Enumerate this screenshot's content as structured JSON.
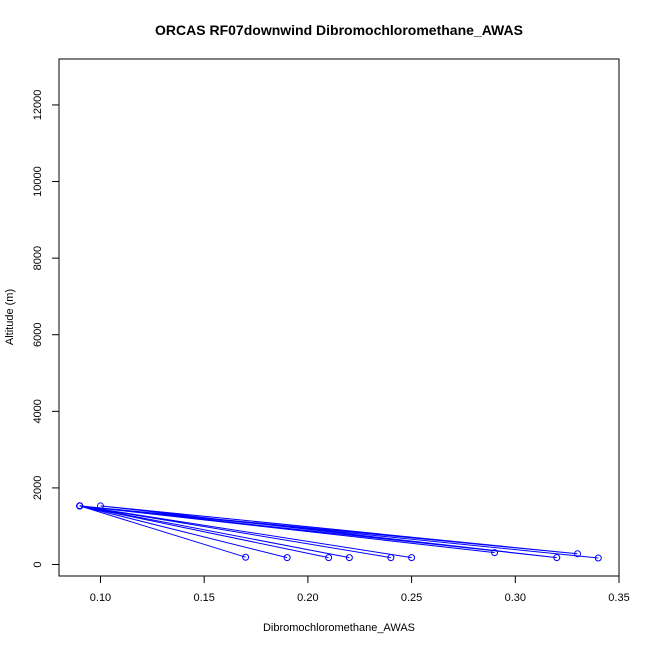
{
  "chart_data": {
    "type": "line",
    "title": "ORCAS RF07downwind Dibromochloromethane_AWAS",
    "xlabel": "Dibromochloromethane_AWAS",
    "ylabel": "Altitude (m)",
    "xlim": [
      0.08,
      0.35
    ],
    "ylim": [
      -300,
      13200
    ],
    "xticks": [
      0.1,
      0.15,
      0.2,
      0.25,
      0.3,
      0.35
    ],
    "xtick_labels": [
      "0.10",
      "0.15",
      "0.20",
      "0.25",
      "0.30",
      "0.35"
    ],
    "yticks": [
      0,
      2000,
      4000,
      6000,
      8000,
      10000,
      12000
    ],
    "ytick_labels": [
      "0",
      "2000",
      "4000",
      "6000",
      "8000",
      "10000",
      "12000"
    ],
    "grid": false,
    "color": "#0000ff",
    "series": [
      {
        "x": [
          0.09,
          0.17,
          0.09,
          0.19,
          0.09,
          0.21,
          0.09,
          0.22,
          0.09,
          0.24,
          0.09,
          0.25,
          0.09,
          0.29,
          0.09,
          0.32,
          0.1,
          0.33,
          0.09,
          0.34
        ],
        "y": [
          1530,
          190,
          1530,
          180,
          1530,
          180,
          1530,
          180,
          1530,
          180,
          1530,
          180,
          1530,
          310,
          1530,
          180,
          1530,
          280,
          1530,
          170
        ]
      }
    ]
  }
}
